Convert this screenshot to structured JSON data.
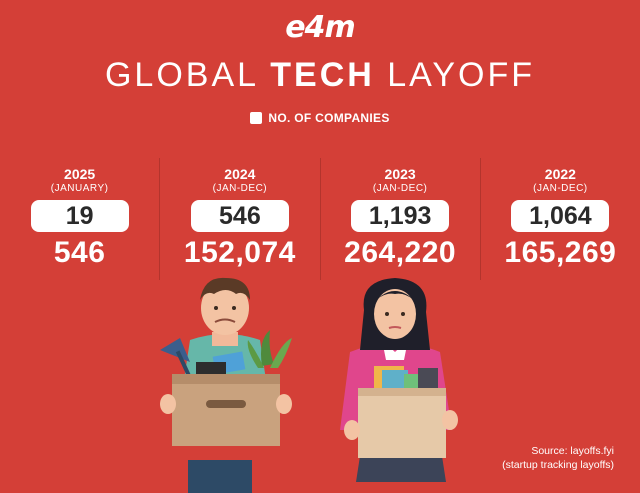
{
  "brand": "e4m",
  "title": {
    "prefix": "GLOBAL",
    "bold": "TECH",
    "suffix": "LAYOFF"
  },
  "legend": {
    "label": "NO. OF COMPANIES",
    "swatch_color": "#ffffff"
  },
  "colors": {
    "background": "#d43f37",
    "pill": "#ffffff"
  },
  "years": [
    {
      "year": "2025",
      "range": "(JANUARY)",
      "companies": "19",
      "layoffs": "546"
    },
    {
      "year": "2024",
      "range": "(JAN-DEC)",
      "companies": "546",
      "layoffs": "152,074"
    },
    {
      "year": "2023",
      "range": "(JAN-DEC)",
      "companies": "1,193",
      "layoffs": "264,220"
    },
    {
      "year": "2022",
      "range": "(JAN-DEC)",
      "companies": "1,064",
      "layoffs": "165,269"
    }
  ],
  "source": {
    "line1": "Source: layoffs.fyi",
    "line2": "(startup tracking layoffs)"
  },
  "illustration": {
    "figures": [
      "man-holding-box",
      "woman-holding-box"
    ]
  }
}
